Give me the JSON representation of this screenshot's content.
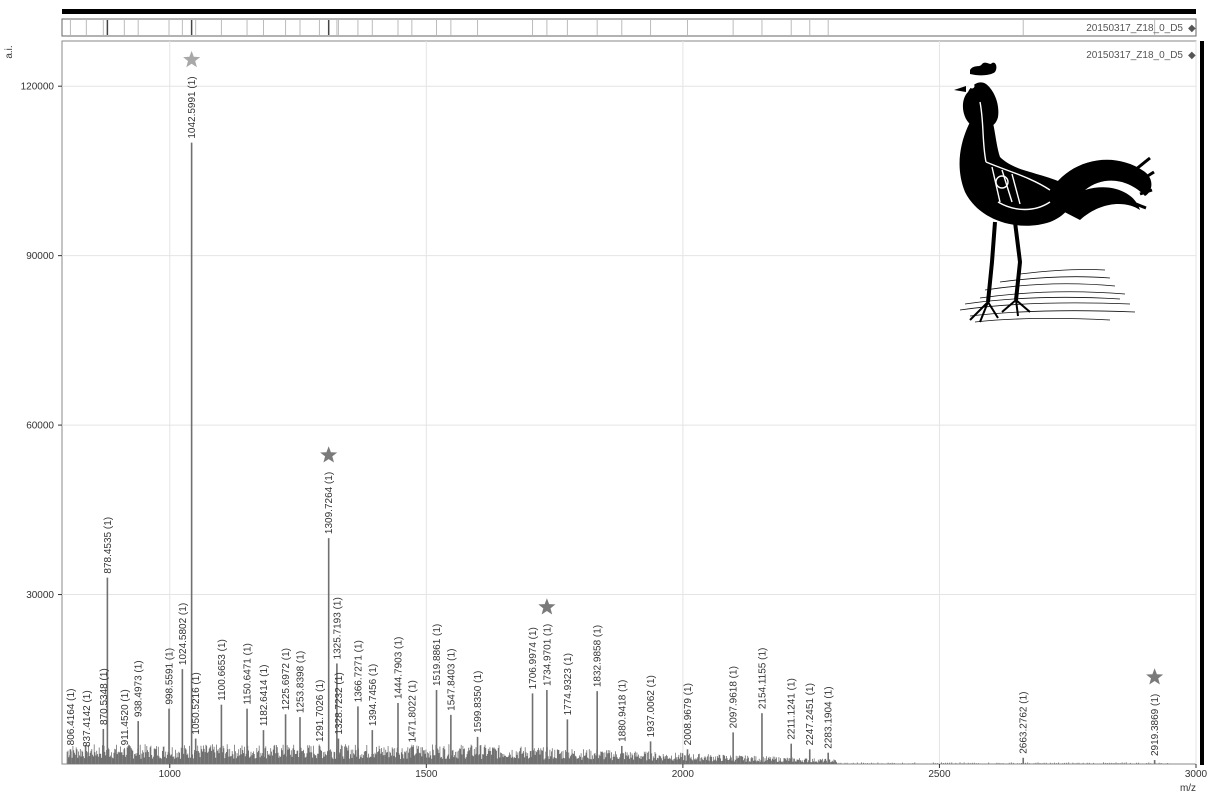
{
  "overview": {
    "sample_label": "20150317_Z18_0_D5"
  },
  "plot": {
    "sample_label": "20150317_Z18_0_D5"
  },
  "chart_data": {
    "type": "bar",
    "xlabel": "m/z",
    "ylabel": "a.i.",
    "xlim": [
      790,
      3000
    ],
    "ylim": [
      0,
      128000
    ],
    "x_ticks": [
      1000,
      1500,
      2000,
      2500,
      3000
    ],
    "y_ticks": [
      30000,
      60000,
      90000,
      120000
    ],
    "grid": true,
    "peaks": [
      {
        "mz": 806.4164,
        "intensity": 2600,
        "label": "806.4164 (1)"
      },
      {
        "mz": 837.4142,
        "intensity": 2300,
        "label": "837.4142 (1)"
      },
      {
        "mz": 870.5348,
        "intensity": 6200,
        "label": "870.5348 (1)"
      },
      {
        "mz": 878.4535,
        "intensity": 33000,
        "label": "878.4535 (1)"
      },
      {
        "mz": 911.452,
        "intensity": 2600,
        "label": "911.4520 (1)"
      },
      {
        "mz": 938.4973,
        "intensity": 7600,
        "label": "938.4973 (1)"
      },
      {
        "mz": 998.5591,
        "intensity": 9800,
        "label": "998.5591 (1)"
      },
      {
        "mz": 1024.5802,
        "intensity": 16800,
        "label": "1024.5802 (1)"
      },
      {
        "mz": 1042.5991,
        "intensity": 110000,
        "label": "1042.5991 (1)"
      },
      {
        "mz": 1050.5216,
        "intensity": 4500,
        "label": "1050.5216 (1)"
      },
      {
        "mz": 1100.6653,
        "intensity": 10500,
        "label": "1100.6653 (1)"
      },
      {
        "mz": 1150.6471,
        "intensity": 9800,
        "label": "1150.6471 (1)"
      },
      {
        "mz": 1182.6414,
        "intensity": 6000,
        "label": "1182.6414 (1)"
      },
      {
        "mz": 1225.6972,
        "intensity": 8800,
        "label": "1225.6972 (1)"
      },
      {
        "mz": 1253.8398,
        "intensity": 8300,
        "label": "1253.8398 (1)"
      },
      {
        "mz": 1291.7026,
        "intensity": 3200,
        "label": "1291.7026 (1)"
      },
      {
        "mz": 1309.7264,
        "intensity": 40000,
        "label": "1309.7264 (1)"
      },
      {
        "mz": 1325.7193,
        "intensity": 17800,
        "label": "1325.7193 (1)"
      },
      {
        "mz": 1328.7232,
        "intensity": 4500,
        "label": "1328.7232 (1)"
      },
      {
        "mz": 1366.7271,
        "intensity": 10200,
        "label": "1366.7271 (1)"
      },
      {
        "mz": 1394.7456,
        "intensity": 6000,
        "label": "1394.7456 (1)"
      },
      {
        "mz": 1444.7903,
        "intensity": 10800,
        "label": "1444.7903 (1)"
      },
      {
        "mz": 1471.8022,
        "intensity": 3100,
        "label": "1471.8022 (1)"
      },
      {
        "mz": 1519.8861,
        "intensity": 13100,
        "label": "1519.8861 (1)"
      },
      {
        "mz": 1547.8403,
        "intensity": 8700,
        "label": "1547.8403 (1)"
      },
      {
        "mz": 1599.835,
        "intensity": 4800,
        "label": "1599.8350 (1)"
      },
      {
        "mz": 1706.9974,
        "intensity": 12500,
        "label": "1706.9974 (1)"
      },
      {
        "mz": 1734.9701,
        "intensity": 13100,
        "label": "1734.9701 (1)"
      },
      {
        "mz": 1774.9323,
        "intensity": 7900,
        "label": "1774.9323 (1)"
      },
      {
        "mz": 1832.9858,
        "intensity": 12900,
        "label": "1832.9858 (1)"
      },
      {
        "mz": 1880.9418,
        "intensity": 3200,
        "label": "1880.9418 (1)"
      },
      {
        "mz": 1937.0062,
        "intensity": 4000,
        "label": "1937.0062 (1)"
      },
      {
        "mz": 2008.9679,
        "intensity": 2600,
        "label": "2008.9679 (1)"
      },
      {
        "mz": 2097.9618,
        "intensity": 5600,
        "label": "2097.9618 (1)"
      },
      {
        "mz": 2154.1155,
        "intensity": 9000,
        "label": "2154.1155 (1)"
      },
      {
        "mz": 2211.1241,
        "intensity": 3600,
        "label": "2211.1241 (1)"
      },
      {
        "mz": 2247.2451,
        "intensity": 2600,
        "label": "2247.2451 (1)"
      },
      {
        "mz": 2283.1904,
        "intensity": 2000,
        "label": "2283.1904 (1)"
      },
      {
        "mz": 2663.2762,
        "intensity": 1100,
        "label": "2663.2762 (1)"
      },
      {
        "mz": 2919.3869,
        "intensity": 700,
        "label": "2919.3869 (1)"
      }
    ],
    "starred_peaks_mz": [
      1042.5991,
      1309.7264,
      1734.9701,
      2919.3869
    ],
    "colors": {
      "spectrum": "#707070",
      "grid": "#e4e4e4",
      "star_main": "#a8a8a8",
      "star": "#7a7a7a",
      "frame": "#000000"
    }
  }
}
